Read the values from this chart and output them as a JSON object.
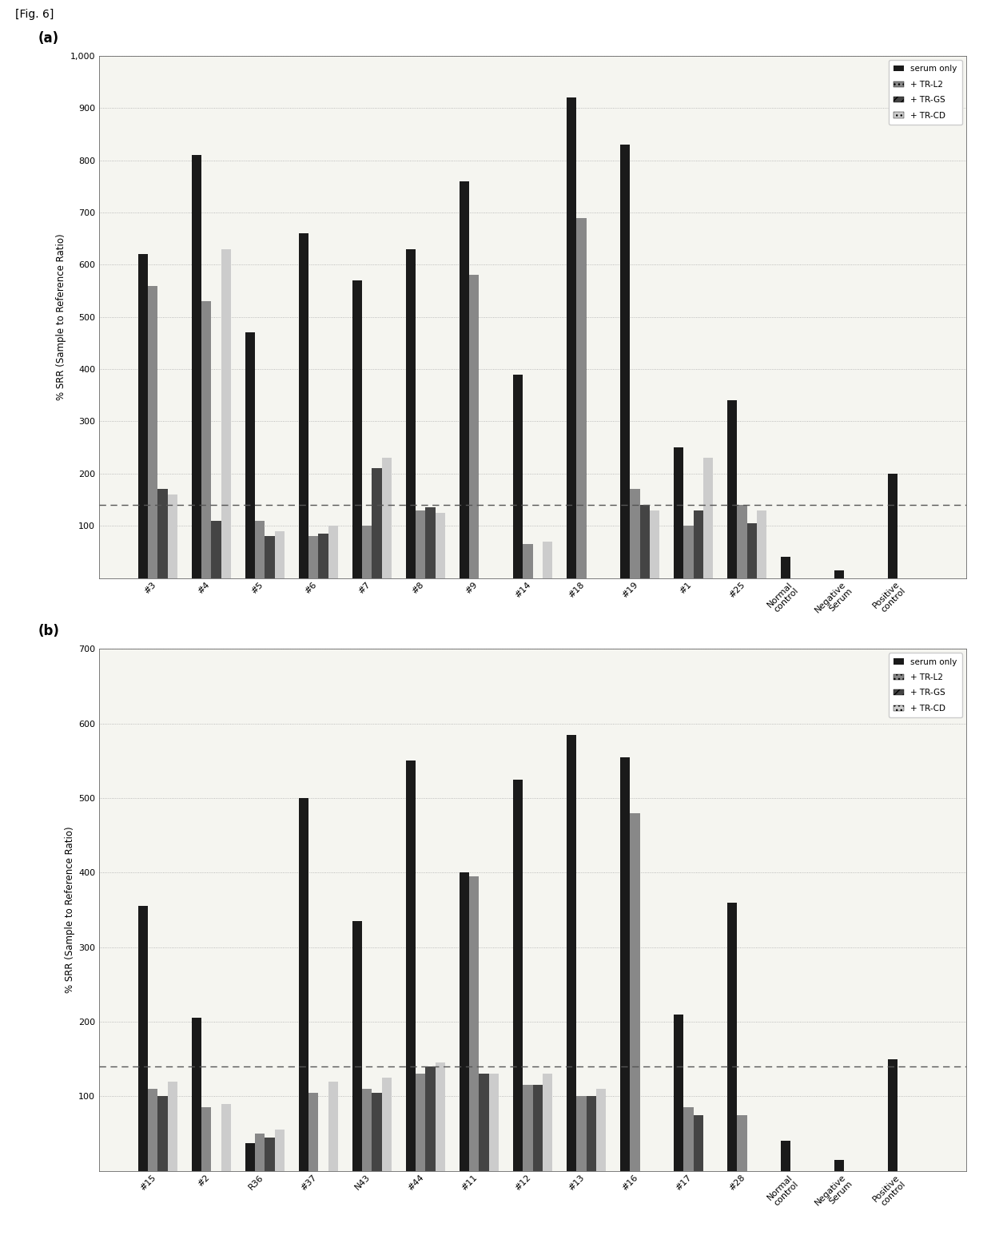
{
  "fig_label": "[Fig. 6]",
  "panel_a": {
    "ylabel": "% SRR (Sample to Reference Ratio)",
    "ylim": [
      0,
      1000
    ],
    "yticks": [
      0,
      100,
      200,
      300,
      400,
      500,
      600,
      700,
      800,
      900,
      1000
    ],
    "ytick_labels": [
      "",
      "100",
      "200",
      "300",
      "400",
      "500",
      "600",
      "700",
      "800",
      "900",
      "1,000"
    ],
    "dashed_line_y": 140,
    "categories": [
      "#3",
      "#4",
      "#5",
      "#6",
      "#7",
      "#8",
      "#9",
      "#14",
      "#18",
      "#19",
      "#1",
      "#25",
      "Normal\ncontrol",
      "Negative\nSerum",
      "Positive\ncontrol"
    ],
    "serum_only": [
      620,
      810,
      470,
      660,
      570,
      630,
      760,
      390,
      920,
      830,
      250,
      340,
      40,
      15,
      200
    ],
    "tr_l2": [
      560,
      530,
      110,
      80,
      100,
      130,
      580,
      65,
      690,
      170,
      100,
      140,
      0,
      0,
      0
    ],
    "tr_gs": [
      170,
      110,
      80,
      85,
      210,
      135,
      0,
      0,
      0,
      140,
      130,
      105,
      0,
      0,
      0
    ],
    "tr_cd": [
      160,
      630,
      90,
      100,
      230,
      125,
      0,
      70,
      0,
      130,
      230,
      130,
      0,
      0,
      0
    ],
    "legend_labels": [
      "serum only",
      "+ TR-L2",
      "+ TR-GS",
      "+ TR-CD"
    ],
    "colors": [
      "#1a1a1a",
      "#888888",
      "#444444",
      "#cccccc"
    ],
    "hatch": [
      "",
      "...",
      "///",
      "..."
    ]
  },
  "panel_b": {
    "ylabel": "% SRR (Sample to Reference Ratio)",
    "ylim": [
      0,
      700
    ],
    "yticks": [
      0,
      100,
      200,
      300,
      400,
      500,
      600,
      700
    ],
    "ytick_labels": [
      "",
      "100",
      "200",
      "300",
      "400",
      "500",
      "600",
      "700"
    ],
    "dashed_line_y": 140,
    "categories": [
      "#15",
      "#2",
      "R36",
      "#37",
      "N43",
      "#44",
      "#11",
      "#12",
      "#13",
      "#16",
      "#17",
      "#28",
      "Normal\ncontrol",
      "Negative\nSerum",
      "Positive\ncontrol"
    ],
    "serum_only": [
      355,
      205,
      37,
      500,
      335,
      550,
      400,
      525,
      585,
      555,
      210,
      360,
      40,
      15,
      150
    ],
    "tr_l2": [
      110,
      85,
      50,
      105,
      110,
      130,
      395,
      115,
      100,
      480,
      85,
      75,
      0,
      0,
      0
    ],
    "tr_gs": [
      100,
      0,
      45,
      0,
      105,
      140,
      130,
      115,
      100,
      0,
      75,
      0,
      0,
      0,
      0
    ],
    "tr_cd": [
      120,
      90,
      55,
      120,
      125,
      145,
      130,
      130,
      110,
      0,
      0,
      0,
      0,
      0,
      0
    ],
    "legend_labels": [
      "serum only",
      "+ TR-L2",
      "+ TR-GS",
      "+ TR-CD"
    ],
    "colors": [
      "#1a1a1a",
      "#888888",
      "#444444",
      "#cccccc"
    ],
    "hatch": [
      "",
      "...",
      "///",
      "..."
    ]
  },
  "bg_color": "#f5f5f0",
  "grid_color": "#aaaaaa",
  "grid_style": ":",
  "dashed_line_color": "#555555",
  "fig_label_font": 10
}
